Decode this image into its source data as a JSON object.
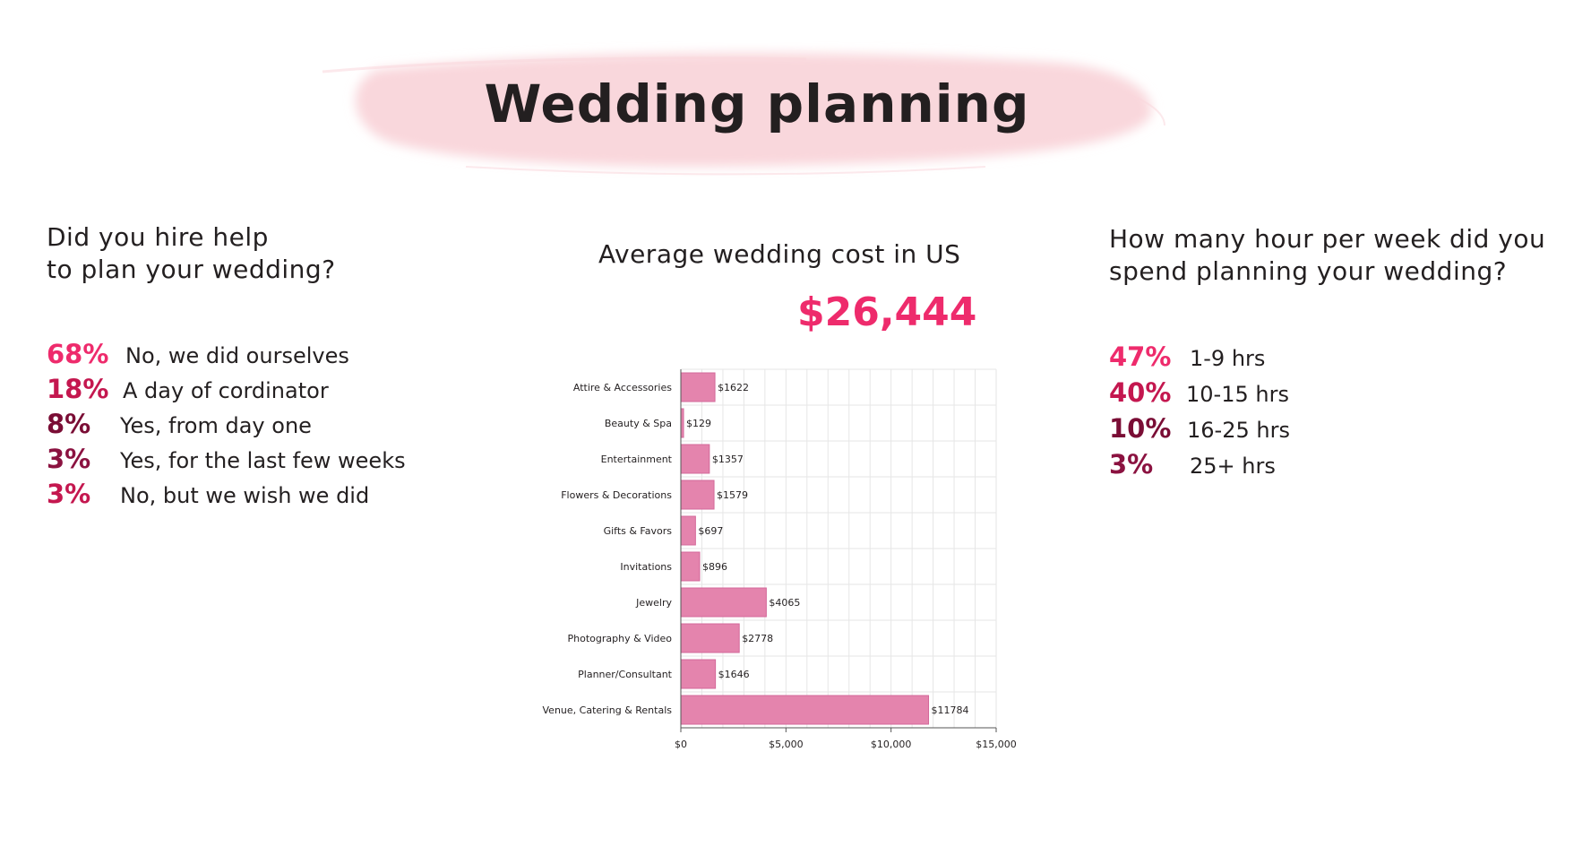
{
  "title": "Wedding planning",
  "colors": {
    "pct_1": "#ee2b6c",
    "pct_2": "#c4174f",
    "pct_3": "#7a0d35",
    "pct_4": "#8b1240",
    "bar_fill": "#e484ad",
    "bar_stroke": "#d3689a",
    "brush": "#f9d7dc"
  },
  "hire_help": {
    "question_line1": "Did you hire help",
    "question_line2": "to plan your wedding?",
    "items": [
      {
        "pct": "68%",
        "label": "No, we did ourselves"
      },
      {
        "pct": "18%",
        "label": "A day of cordinator"
      },
      {
        "pct": "8%",
        "label": "Yes, from day one"
      },
      {
        "pct": "3%",
        "label": "Yes, for the last few weeks"
      },
      {
        "pct": "3%",
        "label": "No, but we wish we did"
      }
    ]
  },
  "cost": {
    "heading": "Average wedding cost in US",
    "total": "$26,444"
  },
  "hours": {
    "question_line1": "How many hour per week did you",
    "question_line2": "spend planning your wedding?",
    "items": [
      {
        "pct": "47%",
        "label": "1-9 hrs"
      },
      {
        "pct": "40%",
        "label": "10-15 hrs"
      },
      {
        "pct": "10%",
        "label": "16-25 hrs"
      },
      {
        "pct": "3%",
        "label": "25+ hrs"
      }
    ]
  },
  "chart_data": {
    "type": "bar",
    "orientation": "horizontal",
    "categories": [
      "Attire & Accessories",
      "Beauty & Spa",
      "Entertainment",
      "Flowers & Decorations",
      "Gifts & Favors",
      "Invitations",
      "Jewelry",
      "Photography & Video",
      "Planner/Consultant",
      "Venue, Catering & Rentals"
    ],
    "values": [
      1622,
      129,
      1357,
      1579,
      697,
      896,
      4065,
      2778,
      1646,
      11784
    ],
    "value_labels": [
      "$1622",
      "$129",
      "$1357",
      "$1579",
      "$697",
      "$896",
      "$4065",
      "$2778",
      "$1646",
      "$11784"
    ],
    "xlim": [
      0,
      15000
    ],
    "xticks": [
      0,
      5000,
      10000,
      15000
    ],
    "xtick_labels": [
      "$0",
      "$5,000",
      "$10,000",
      "$15,000"
    ],
    "grid": true,
    "legend": false
  }
}
